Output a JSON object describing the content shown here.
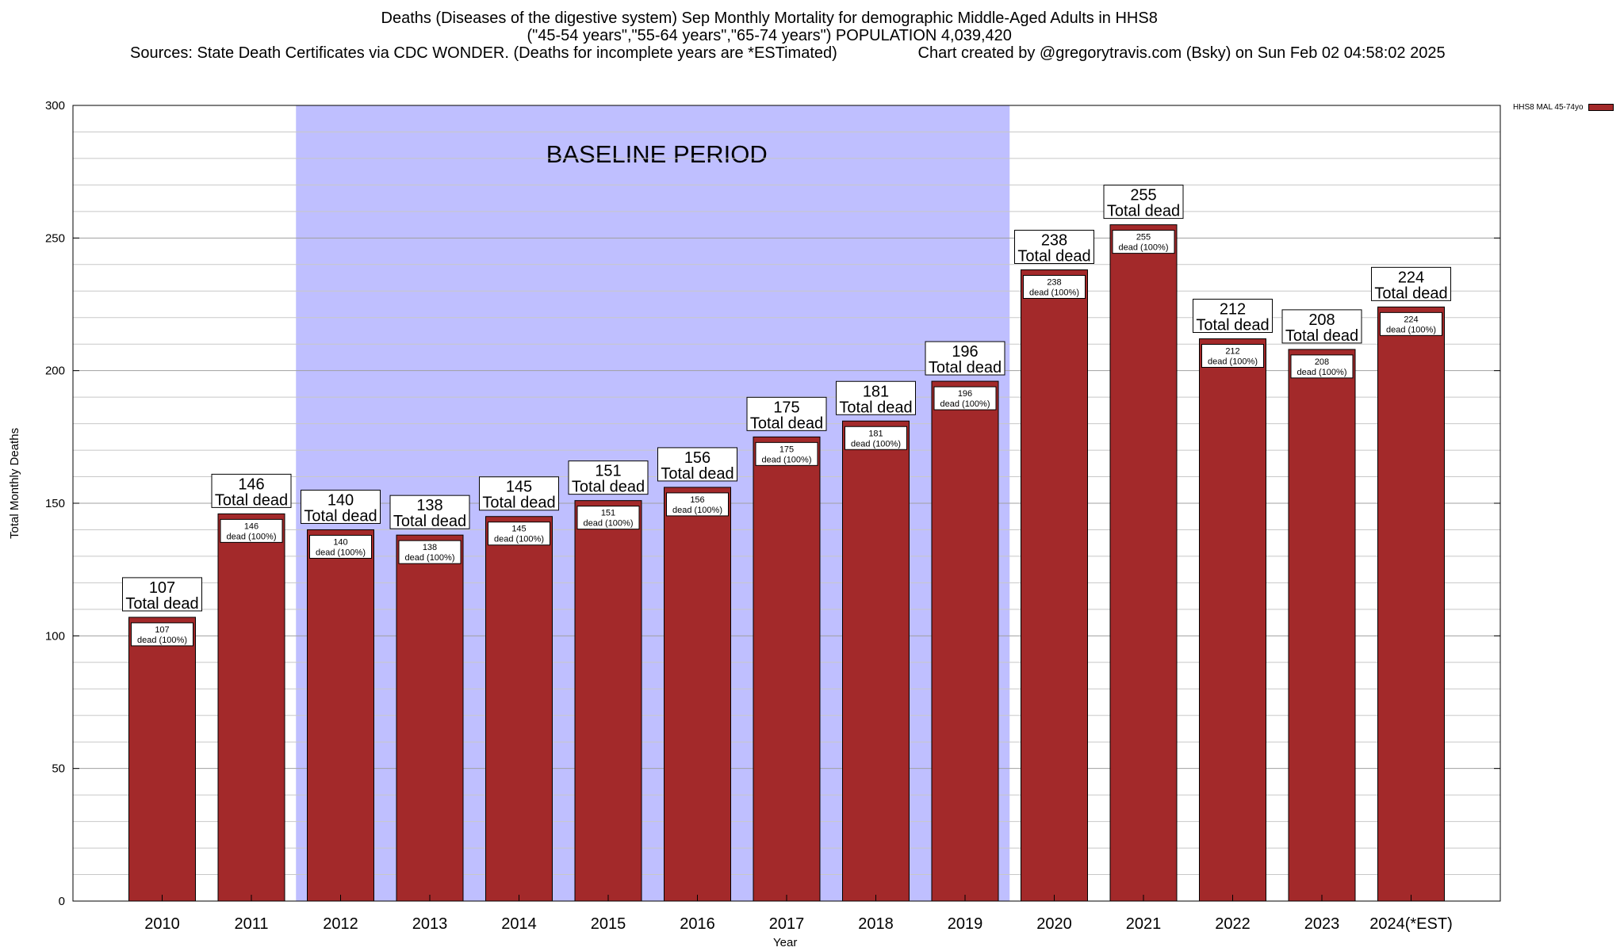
{
  "header": {
    "line1": "Deaths (Diseases of the digestive system) Sep Monthly Mortality for demographic Middle-Aged Adults in HHS8",
    "line2": "(\"45-54 years\",\"55-64 years\",\"65-74 years\") POPULATION 4,039,420",
    "line3_left": "Sources: State Death Certificates via CDC WONDER. (Deaths for incomplete years are *ESTimated)",
    "line3_right": "Chart created by @gregorytravis.com (Bsky) on Sun Feb 02 04:58:02 2025"
  },
  "chart_data": {
    "type": "bar",
    "title": "Deaths (Diseases of the digestive system) Sep Monthly Mortality for demographic Middle-Aged Adults in HHS8",
    "xlabel": "Year",
    "ylabel": "Total Monthly Deaths",
    "ylim": [
      0,
      300
    ],
    "yticks": [
      0,
      50,
      100,
      150,
      200,
      250,
      300
    ],
    "minor_grid_step": 10,
    "grid": true,
    "legend_position": "top-right",
    "categories": [
      "2010",
      "2011",
      "2012",
      "2013",
      "2014",
      "2015",
      "2016",
      "2017",
      "2018",
      "2019",
      "2020",
      "2021",
      "2022",
      "2023",
      "2024(*EST)"
    ],
    "series": [
      {
        "name": "HHS8 MAL 45-74yo",
        "color": "#a3292a",
        "values": [
          107,
          146,
          140,
          138,
          145,
          151,
          156,
          175,
          181,
          196,
          238,
          255,
          212,
          208,
          224
        ]
      }
    ],
    "inner_label_suffix": "dead (100%)",
    "top_label_suffix": "Total dead",
    "baseline_period": {
      "label": "BASELINE PERIOD",
      "start": "2012",
      "end": "2019",
      "color": "#bfbfff"
    }
  }
}
